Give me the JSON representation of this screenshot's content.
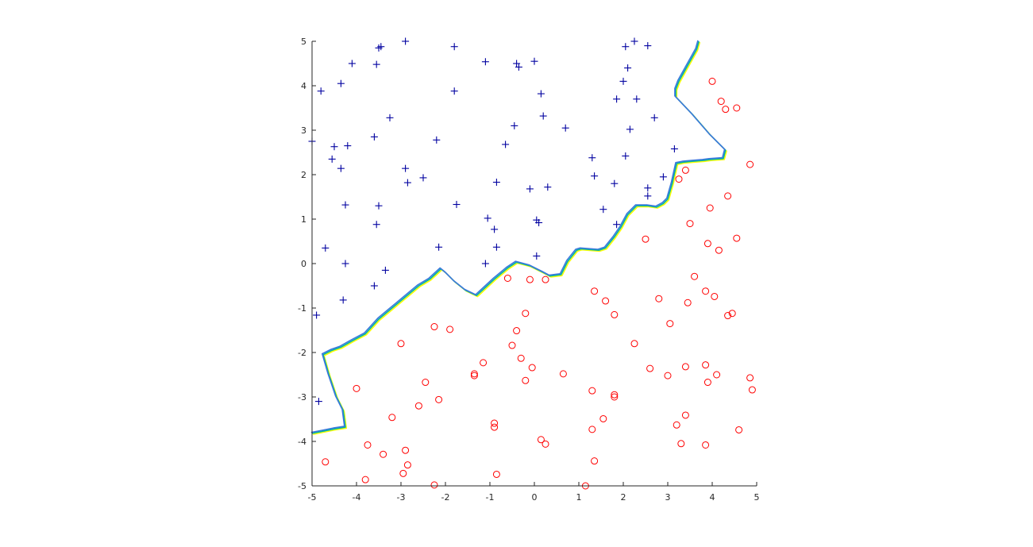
{
  "chart_data": {
    "type": "scatter",
    "title": "",
    "xlabel": "",
    "ylabel": "",
    "xlim": [
      -5,
      5
    ],
    "ylim": [
      -5,
      5
    ],
    "grid": false,
    "legend": "none",
    "xticks": [
      "-5",
      "-4",
      "-3",
      "-2",
      "-1",
      "0",
      "1",
      "2",
      "3",
      "4",
      "5"
    ],
    "yticks": [
      "-5",
      "-4",
      "-3",
      "-2",
      "-1",
      "0",
      "1",
      "2",
      "3",
      "4",
      "5"
    ],
    "series": [
      {
        "marker": "plus",
        "color": "#0000a0",
        "points": [
          [
            -2.9,
            5.0
          ],
          [
            -3.5,
            4.85
          ],
          [
            -3.45,
            4.88
          ],
          [
            -1.8,
            4.88
          ],
          [
            -4.1,
            4.5
          ],
          [
            -3.55,
            4.48
          ],
          [
            -1.1,
            4.54
          ],
          [
            -0.4,
            4.5
          ],
          [
            -0.35,
            4.42
          ],
          [
            0.0,
            4.55
          ],
          [
            2.05,
            4.88
          ],
          [
            2.25,
            5.0
          ],
          [
            2.55,
            4.9
          ],
          [
            -4.35,
            4.05
          ],
          [
            -4.8,
            3.88
          ],
          [
            -1.8,
            3.88
          ],
          [
            0.15,
            3.82
          ],
          [
            2.1,
            4.4
          ],
          [
            2.0,
            4.1
          ],
          [
            1.85,
            3.7
          ],
          [
            2.3,
            3.7
          ],
          [
            -3.25,
            3.28
          ],
          [
            0.2,
            3.32
          ],
          [
            -0.45,
            3.1
          ],
          [
            0.7,
            3.05
          ],
          [
            2.15,
            3.02
          ],
          [
            2.7,
            3.28
          ],
          [
            -4.5,
            2.63
          ],
          [
            -4.2,
            2.65
          ],
          [
            -3.6,
            2.85
          ],
          [
            -2.2,
            2.78
          ],
          [
            -0.65,
            2.68
          ],
          [
            3.15,
            2.58
          ],
          [
            -4.55,
            2.35
          ],
          [
            -4.35,
            2.14
          ],
          [
            -2.9,
            2.14
          ],
          [
            1.3,
            2.38
          ],
          [
            2.05,
            2.42
          ],
          [
            -2.5,
            1.93
          ],
          [
            -2.85,
            1.82
          ],
          [
            -0.85,
            1.83
          ],
          [
            -0.1,
            1.68
          ],
          [
            0.3,
            1.72
          ],
          [
            1.35,
            1.97
          ],
          [
            1.8,
            1.8
          ],
          [
            2.9,
            1.95
          ],
          [
            2.55,
            1.7
          ],
          [
            -4.25,
            1.32
          ],
          [
            -3.5,
            1.3
          ],
          [
            -1.75,
            1.33
          ],
          [
            -1.05,
            1.02
          ],
          [
            -0.9,
            0.77
          ],
          [
            0.05,
            0.98
          ],
          [
            0.1,
            0.92
          ],
          [
            1.55,
            1.22
          ],
          [
            2.55,
            1.52
          ],
          [
            -3.55,
            0.88
          ],
          [
            1.85,
            0.88
          ],
          [
            -4.7,
            0.35
          ],
          [
            -2.15,
            0.37
          ],
          [
            -0.85,
            0.37
          ],
          [
            -4.25,
            0.0
          ],
          [
            -1.1,
            0.0
          ],
          [
            0.05,
            0.17
          ],
          [
            -3.35,
            -0.15
          ],
          [
            -3.6,
            -0.5
          ],
          [
            -4.3,
            -0.82
          ],
          [
            -4.9,
            -1.16
          ],
          [
            -4.85,
            -3.1
          ],
          [
            -5.0,
            2.75
          ]
        ]
      },
      {
        "marker": "circle",
        "color": "#ff0000",
        "points": [
          [
            4.0,
            4.1
          ],
          [
            4.2,
            3.65
          ],
          [
            4.3,
            3.47
          ],
          [
            4.55,
            3.5
          ],
          [
            4.85,
            2.23
          ],
          [
            3.4,
            2.1
          ],
          [
            3.25,
            1.9
          ],
          [
            4.35,
            1.52
          ],
          [
            3.95,
            1.25
          ],
          [
            3.5,
            0.9
          ],
          [
            4.55,
            0.57
          ],
          [
            2.5,
            0.55
          ],
          [
            3.9,
            0.45
          ],
          [
            4.15,
            0.3
          ],
          [
            -0.6,
            -0.33
          ],
          [
            -0.1,
            -0.36
          ],
          [
            0.25,
            -0.36
          ],
          [
            3.6,
            -0.29
          ],
          [
            3.85,
            -0.62
          ],
          [
            4.05,
            -0.74
          ],
          [
            1.35,
            -0.62
          ],
          [
            1.6,
            -0.84
          ],
          [
            2.8,
            -0.79
          ],
          [
            3.45,
            -0.88
          ],
          [
            1.8,
            -1.15
          ],
          [
            4.35,
            -1.17
          ],
          [
            4.45,
            -1.12
          ],
          [
            -0.2,
            -1.12
          ],
          [
            3.05,
            -1.35
          ],
          [
            -2.25,
            -1.42
          ],
          [
            -1.9,
            -1.48
          ],
          [
            -0.4,
            -1.51
          ],
          [
            -3.0,
            -1.8
          ],
          [
            -0.5,
            -1.84
          ],
          [
            2.25,
            -1.8
          ],
          [
            -0.3,
            -2.13
          ],
          [
            -1.15,
            -2.23
          ],
          [
            -0.05,
            -2.34
          ],
          [
            2.6,
            -2.36
          ],
          [
            3.4,
            -2.32
          ],
          [
            3.85,
            -2.28
          ],
          [
            -1.35,
            -2.48
          ],
          [
            -1.35,
            -2.52
          ],
          [
            0.65,
            -2.48
          ],
          [
            3.0,
            -2.52
          ],
          [
            4.1,
            -2.5
          ],
          [
            4.85,
            -2.57
          ],
          [
            -0.2,
            -2.63
          ],
          [
            -2.45,
            -2.67
          ],
          [
            3.9,
            -2.67
          ],
          [
            -4.0,
            -2.81
          ],
          [
            1.3,
            -2.86
          ],
          [
            1.8,
            -2.95
          ],
          [
            1.8,
            -3.0
          ],
          [
            4.9,
            -2.84
          ],
          [
            -2.15,
            -3.06
          ],
          [
            -2.6,
            -3.2
          ],
          [
            -3.2,
            -3.46
          ],
          [
            1.55,
            -3.49
          ],
          [
            3.4,
            -3.41
          ],
          [
            -0.9,
            -3.59
          ],
          [
            -0.9,
            -3.68
          ],
          [
            3.2,
            -3.63
          ],
          [
            1.3,
            -3.73
          ],
          [
            4.6,
            -3.74
          ],
          [
            0.15,
            -3.96
          ],
          [
            0.25,
            -4.06
          ],
          [
            3.3,
            -4.05
          ],
          [
            3.85,
            -4.08
          ],
          [
            -3.75,
            -4.08
          ],
          [
            -2.9,
            -4.2
          ],
          [
            -3.4,
            -4.29
          ],
          [
            1.35,
            -4.44
          ],
          [
            -4.7,
            -4.46
          ],
          [
            -2.85,
            -4.53
          ],
          [
            -2.95,
            -4.72
          ],
          [
            -0.85,
            -4.74
          ],
          [
            -3.8,
            -4.86
          ],
          [
            -2.25,
            -4.98
          ],
          [
            1.15,
            -5.0
          ]
        ]
      }
    ],
    "boundary_colors": [
      "#ffff00",
      "#00b4a0",
      "#3c78dc"
    ],
    "decision_boundary": [
      [
        3.7,
        5.0
      ],
      [
        3.65,
        4.82
      ],
      [
        3.55,
        4.64
      ],
      [
        3.45,
        4.46
      ],
      [
        3.35,
        4.28
      ],
      [
        3.25,
        4.1
      ],
      [
        3.18,
        3.92
      ],
      [
        3.18,
        3.75
      ],
      [
        3.55,
        3.36
      ],
      [
        3.95,
        2.9
      ],
      [
        4.3,
        2.55
      ],
      [
        4.25,
        2.36
      ],
      [
        3.95,
        2.34
      ],
      [
        3.8,
        2.32
      ],
      [
        3.55,
        2.3
      ],
      [
        3.35,
        2.28
      ],
      [
        3.2,
        2.25
      ],
      [
        3.1,
        1.8
      ],
      [
        3.0,
        1.45
      ],
      [
        2.9,
        1.35
      ],
      [
        2.75,
        1.27
      ],
      [
        2.55,
        1.3
      ],
      [
        2.3,
        1.3
      ],
      [
        2.1,
        1.1
      ],
      [
        1.95,
        0.82
      ],
      [
        1.8,
        0.6
      ],
      [
        1.6,
        0.35
      ],
      [
        1.45,
        0.3
      ],
      [
        1.05,
        0.33
      ],
      [
        0.95,
        0.3
      ],
      [
        0.75,
        0.05
      ],
      [
        0.6,
        -0.25
      ],
      [
        0.35,
        -0.28
      ],
      [
        0.2,
        -0.2
      ],
      [
        -0.1,
        -0.05
      ],
      [
        -0.4,
        0.03
      ],
      [
        -0.6,
        -0.1
      ],
      [
        -0.9,
        -0.35
      ],
      [
        -1.3,
        -0.72
      ],
      [
        -1.55,
        -0.6
      ],
      [
        -1.8,
        -0.4
      ],
      [
        -2.0,
        -0.2
      ],
      [
        -2.1,
        -0.12
      ],
      [
        -2.35,
        -0.35
      ],
      [
        -2.6,
        -0.5
      ],
      [
        -2.9,
        -0.75
      ],
      [
        -3.2,
        -1.0
      ],
      [
        -3.5,
        -1.25
      ],
      [
        -3.8,
        -1.58
      ],
      [
        -4.1,
        -1.74
      ],
      [
        -4.35,
        -1.88
      ],
      [
        -4.55,
        -1.95
      ],
      [
        -4.75,
        -2.05
      ],
      [
        -4.62,
        -2.5
      ],
      [
        -4.45,
        -3.0
      ],
      [
        -4.3,
        -3.3
      ],
      [
        -4.25,
        -3.68
      ],
      [
        -4.5,
        -3.72
      ],
      [
        -4.8,
        -3.78
      ],
      [
        -5.0,
        -3.82
      ]
    ]
  }
}
